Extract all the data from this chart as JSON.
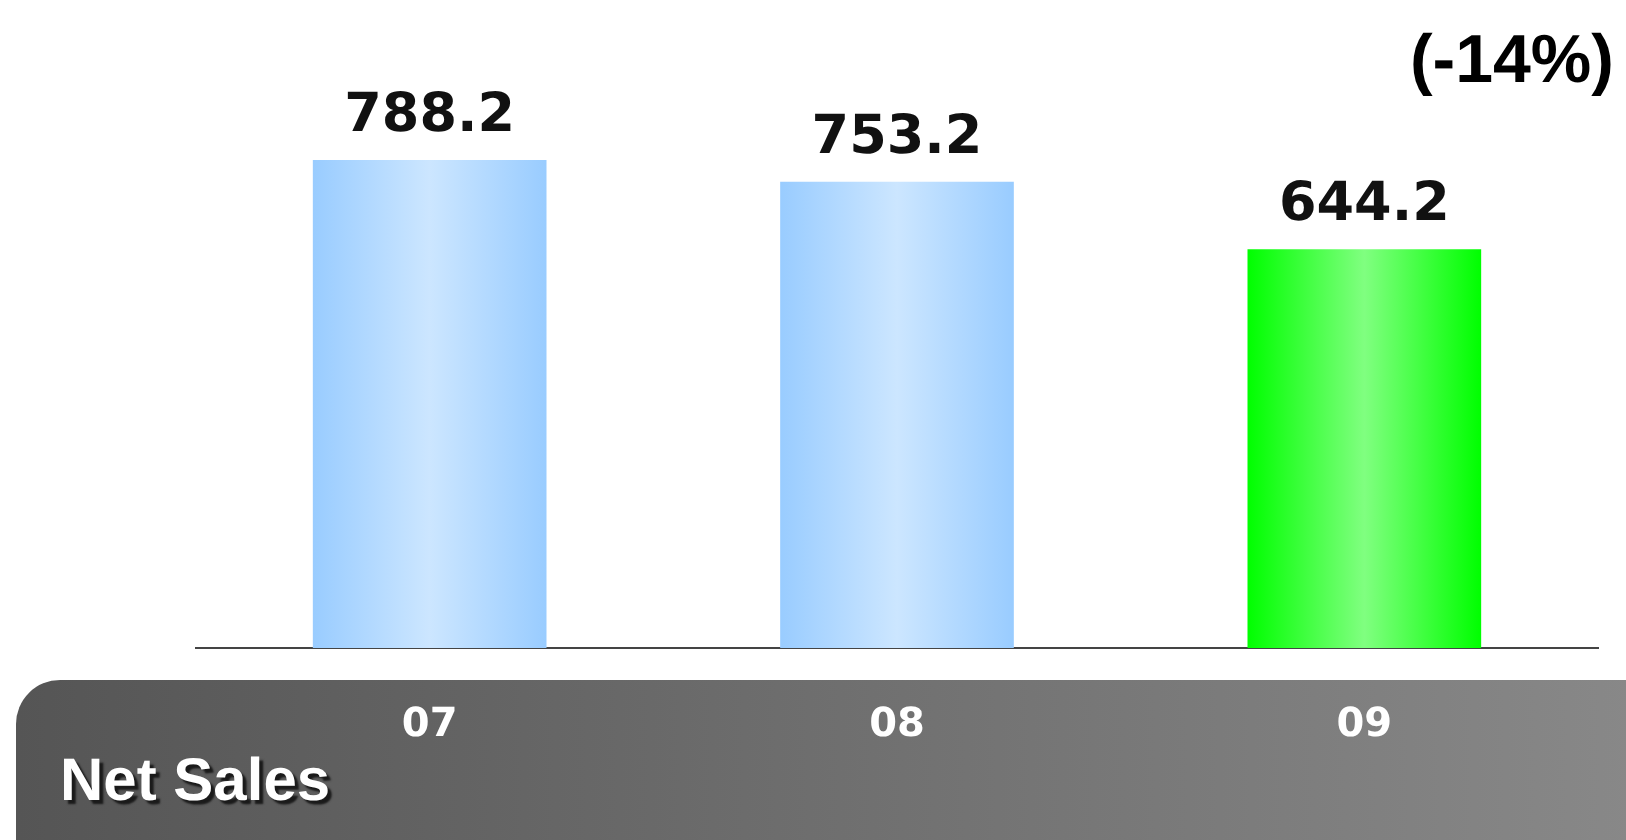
{
  "chart_data": {
    "type": "bar",
    "title": "Net Sales",
    "categories": [
      "07",
      "08",
      "09"
    ],
    "values": [
      788.2,
      753.2,
      644.2
    ],
    "colors": [
      "#99ccff",
      "#99ccff",
      "#00ff00"
    ],
    "data_labels": true,
    "annotations": [
      "(-14%)"
    ],
    "grid": false,
    "legend": false,
    "tick_labels": "x"
  }
}
